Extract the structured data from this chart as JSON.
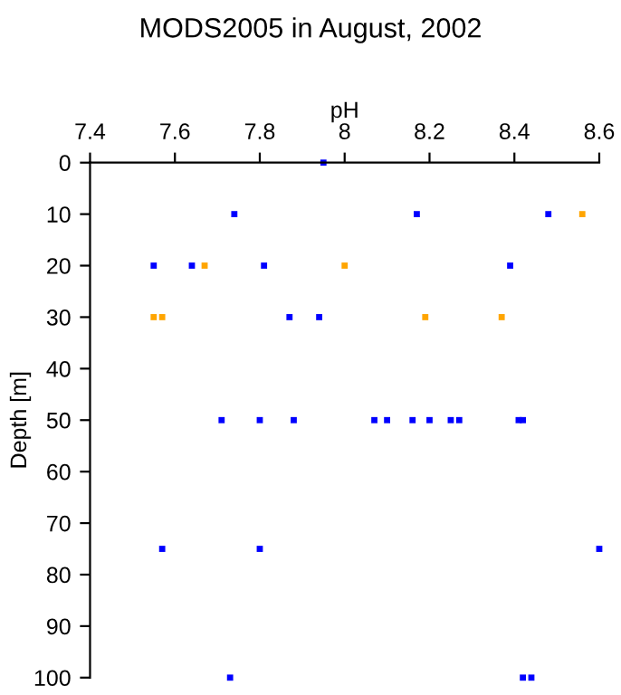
{
  "chart_data": {
    "type": "scatter",
    "title": "MODS2005 in August, 2002",
    "xlabel": "pH",
    "ylabel": "Depth [m]",
    "xlim": [
      7.4,
      8.6
    ],
    "xticks": [
      7.4,
      7.6,
      7.8,
      8,
      8.2,
      8.4,
      8.6
    ],
    "ylim": [
      100,
      0
    ],
    "yticks": [
      0,
      10,
      20,
      30,
      40,
      50,
      60,
      70,
      80,
      90,
      100
    ],
    "grid": false,
    "marker": "square",
    "series": [
      {
        "color": "#0000ff",
        "x": [
          7.95,
          7.74,
          8.17,
          8.48,
          7.55,
          7.64,
          7.81,
          8.39,
          7.87,
          7.94,
          7.71,
          7.8,
          7.88,
          8.07,
          8.1,
          8.16,
          8.2,
          8.25,
          8.27,
          8.41,
          8.42,
          7.57,
          7.8,
          8.6,
          7.73,
          8.42,
          8.44
        ],
        "values": [
          0,
          10,
          10,
          10,
          20,
          20,
          20,
          20,
          30,
          30,
          50,
          50,
          50,
          50,
          50,
          50,
          50,
          50,
          50,
          50,
          50,
          75,
          75,
          75,
          100,
          100,
          100
        ]
      },
      {
        "color": "#ffa500",
        "x": [
          8.56,
          7.67,
          8.0,
          7.55,
          7.57,
          8.19,
          8.37
        ],
        "values": [
          10,
          20,
          20,
          30,
          30,
          30,
          30
        ]
      }
    ]
  }
}
